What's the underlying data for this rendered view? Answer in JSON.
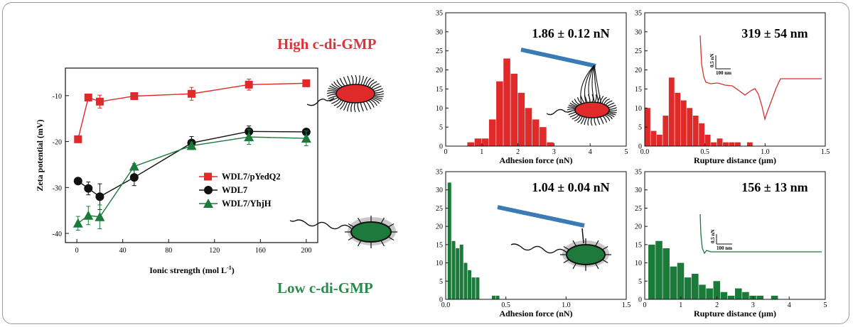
{
  "colors": {
    "red": "#e02a2a",
    "green": "#1a7a3a",
    "blue": "#3a7ab5",
    "black": "#111111",
    "title_red": "#d9353a",
    "title_green": "#2a8a4a"
  },
  "labels": {
    "high": "High c-di-GMP",
    "low": "Low c-di-GMP"
  },
  "chart_data": [
    {
      "type": "line",
      "xlabel": "Ionic strength (mol L",
      "xlabel_sup": "-1",
      "xlabel_close": ")",
      "ylabel": "Zeta potential (mV)",
      "xlim": [
        -10,
        210
      ],
      "ylim": [
        -42,
        -4
      ],
      "xticks": [
        0,
        40,
        80,
        120,
        160,
        200
      ],
      "yticks": [
        -10,
        -20,
        -30,
        -40
      ],
      "legend_position": "center-right",
      "series": [
        {
          "name": "WDL7/pYedQ2",
          "color": "#e02a2a",
          "marker": "square",
          "x": [
            1,
            10,
            20,
            50,
            100,
            150,
            200
          ],
          "y": [
            -19.5,
            -10.4,
            -11.3,
            -10.1,
            -9.6,
            -7.6,
            -7.3
          ],
          "err": [
            0.6,
            0.6,
            1.4,
            0.6,
            1.4,
            1.2,
            0.4
          ]
        },
        {
          "name": "WDL7",
          "color": "#111111",
          "marker": "circle",
          "x": [
            1,
            10,
            20,
            50,
            100,
            150,
            200
          ],
          "y": [
            -28.6,
            -30.2,
            -32.0,
            -27.8,
            -20.3,
            -17.8,
            -17.9
          ],
          "err": [
            0.5,
            1.4,
            2.8,
            1.8,
            1.4,
            1.2,
            0.3
          ]
        },
        {
          "name": "WDL7/YhjH",
          "color": "#1a7a3a",
          "marker": "triangle",
          "x": [
            1,
            10,
            20,
            50,
            100,
            150,
            200
          ],
          "y": [
            -37.8,
            -36.1,
            -36.4,
            -25.4,
            -20.9,
            -19.0,
            -19.3
          ],
          "err": [
            1.5,
            2.0,
            2.6,
            0.6,
            0.8,
            1.6,
            1.6
          ]
        }
      ]
    },
    {
      "type": "bar",
      "color": "#e02a2a",
      "annotation": "1.86 ± 0.12 nN",
      "xlabel": "Adhesion force (nN)",
      "ylabel": "",
      "xlim": [
        0,
        5
      ],
      "ylim": [
        0,
        35
      ],
      "xticks": [
        0,
        1,
        2,
        3,
        4,
        5
      ],
      "yticks": [
        0,
        5,
        10,
        15,
        20,
        25,
        30,
        35
      ],
      "bin_width": 0.2,
      "bins": [
        0.7,
        0.9,
        1.1,
        1.3,
        1.5,
        1.7,
        1.9,
        2.1,
        2.3,
        2.5,
        2.7,
        2.9
      ],
      "values": [
        1,
        2,
        2,
        7,
        17,
        23,
        19,
        14,
        10,
        7,
        5,
        1
      ]
    },
    {
      "type": "bar",
      "color": "#e02a2a",
      "annotation": "319 ±  54 nm",
      "xlabel": "Rupture distance (μm)",
      "ylabel": "",
      "xlim": [
        0,
        1.5
      ],
      "ylim": [
        0,
        35
      ],
      "xticks": [
        0.0,
        0.5,
        1.0,
        1.5
      ],
      "yticks": [
        0,
        5,
        10,
        15,
        20,
        25,
        30,
        35
      ],
      "bin_width": 0.05,
      "bins": [
        0.025,
        0.075,
        0.125,
        0.175,
        0.225,
        0.275,
        0.325,
        0.375,
        0.425,
        0.475,
        0.525,
        0.575,
        0.625,
        0.675,
        0.725,
        0.775,
        0.825,
        0.875
      ],
      "values": [
        10,
        4,
        3,
        8,
        18,
        14,
        12,
        10,
        8,
        6,
        3,
        1,
        2,
        1,
        1,
        1,
        0,
        1
      ],
      "inset": {
        "scale_y": "0.5 nN",
        "scale_x": "100 nm"
      }
    },
    {
      "type": "bar",
      "color": "#1a7a3a",
      "annotation": "1.04 ± 0.04 nN",
      "xlabel": "Adhesion force (nN)",
      "ylabel": "",
      "xlim": [
        0,
        1.5
      ],
      "ylim": [
        0,
        35
      ],
      "xticks": [
        0.0,
        0.5,
        1.0,
        1.5
      ],
      "yticks": [
        0,
        5,
        10,
        15,
        20,
        25,
        30,
        35
      ],
      "bin_width": 0.033,
      "bins": [
        0.033,
        0.067,
        0.1,
        0.133,
        0.167,
        0.2,
        0.233,
        0.267,
        0.3,
        0.333,
        0.367,
        0.4,
        0.433,
        0.467
      ],
      "values": [
        32,
        16,
        14,
        15,
        10,
        8,
        6,
        6,
        0,
        0,
        0,
        1,
        1,
        0
      ]
    },
    {
      "type": "bar",
      "color": "#1a7a3a",
      "annotation": "156 ±  13 nm",
      "xlabel": "Rupture distance (μm)",
      "ylabel": "",
      "xlim": [
        0,
        5
      ],
      "ylim": [
        0,
        35
      ],
      "xticks": [
        0,
        1,
        2,
        3,
        4,
        5
      ],
      "yticks": [
        0,
        5,
        10,
        15,
        20,
        25,
        30,
        35
      ],
      "bin_width": 0.2,
      "bins": [
        0.2,
        0.4,
        0.6,
        0.8,
        1.0,
        1.2,
        1.4,
        1.6,
        1.8,
        2.0,
        2.2,
        2.4,
        2.6,
        2.8,
        3.0,
        3.2,
        3.6
      ],
      "values": [
        15,
        16,
        14,
        9,
        10,
        6,
        7,
        4,
        3,
        5,
        2,
        1,
        3,
        2,
        1,
        1,
        1
      ],
      "inset": {
        "scale_y": "0.5 nN",
        "scale_x": "100 nm"
      }
    }
  ]
}
